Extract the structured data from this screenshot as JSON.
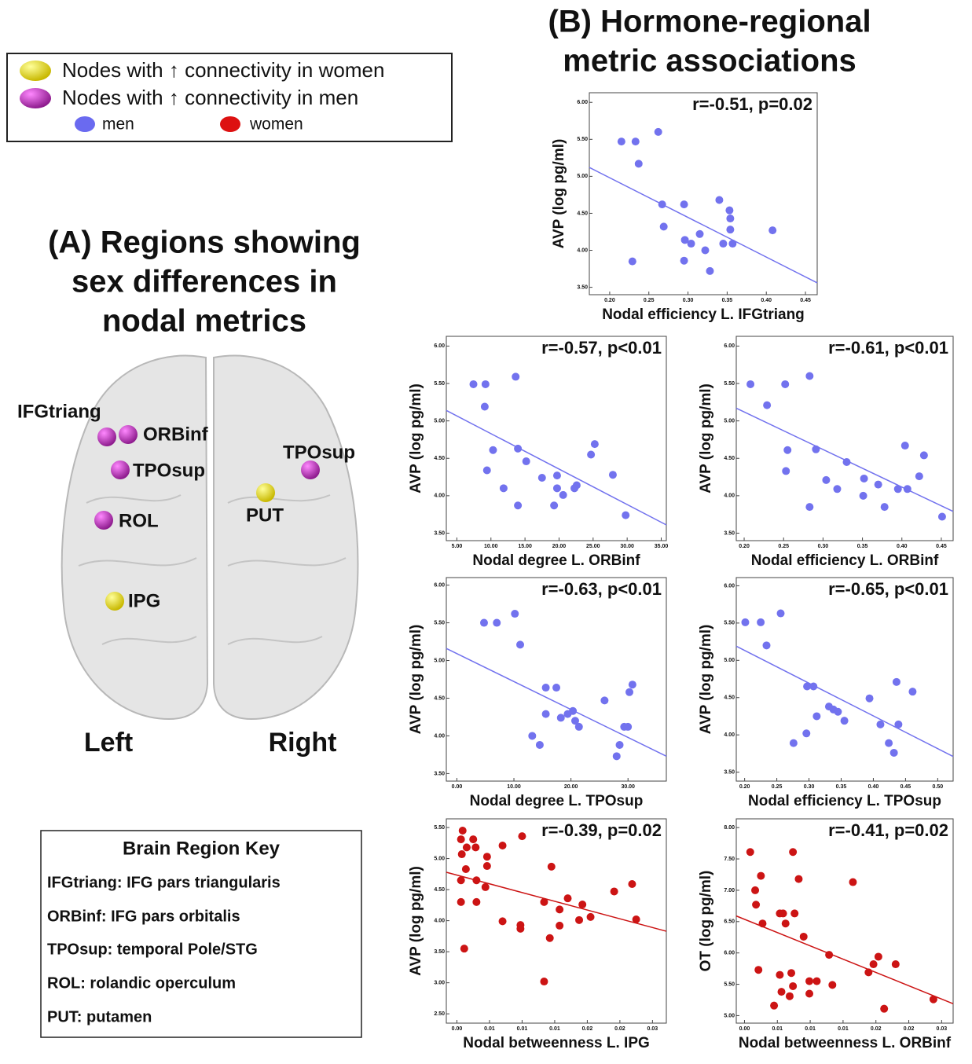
{
  "legend": {
    "items": [
      "Nodes with ↑ connectivity in women",
      "Nodes with ↑ connectivity in men",
      "men",
      "women"
    ]
  },
  "panel_a": {
    "title_lines": [
      "(A) Regions showing",
      "sex differences in",
      "nodal metrics"
    ],
    "nodes": [
      "IFGtriang",
      "ORBinf",
      "TPOsup",
      "ROL",
      "IPG",
      "TPOsup",
      "PUT"
    ],
    "sides": [
      "Left",
      "Right"
    ]
  },
  "key": {
    "title": "Brain Region Key",
    "items": [
      "IFGtriang: IFG pars triangularis",
      "ORBinf: IFG pars orbitalis",
      "TPOsup: temporal Pole/STG",
      "ROL: rolandic operculum",
      "PUT: putamen"
    ]
  },
  "panel_b": {
    "title_lines": [
      "(B) Hormone-regional",
      "metric associations"
    ]
  },
  "chart_data": [
    {
      "type": "scatter",
      "annotation": "r=-0.51, p=0.02",
      "xlabel": "Nodal efficiency L. IFGtriang",
      "ylabel": "AVP (log pg/ml)",
      "color": "#7272ee",
      "x": [
        0.215,
        0.233,
        0.237,
        0.262,
        0.267,
        0.269,
        0.295,
        0.296,
        0.304,
        0.315,
        0.322,
        0.328,
        0.34,
        0.345,
        0.353,
        0.354,
        0.354,
        0.357,
        0.408,
        0.229,
        0.295
      ],
      "values": [
        5.47,
        5.47,
        5.17,
        5.6,
        4.62,
        4.32,
        4.62,
        4.14,
        4.09,
        4.22,
        4.0,
        3.72,
        4.68,
        4.09,
        4.54,
        4.43,
        4.28,
        4.09,
        4.27,
        3.85,
        3.86
      ],
      "trend": {
        "x": [
          0.174,
          0.465
        ],
        "y": [
          5.12,
          3.56
        ]
      },
      "xlim": [
        0.174,
        0.465
      ],
      "ylim": [
        3.4,
        6.13
      ],
      "xticks": [
        {
          "value": 0.2,
          "label": "0.20"
        },
        {
          "value": 0.25,
          "label": "0.25"
        },
        {
          "value": 0.3,
          "label": "0.30"
        },
        {
          "value": 0.35,
          "label": "0.35"
        },
        {
          "value": 0.4,
          "label": "0.40"
        },
        {
          "value": 0.45,
          "label": "0.45"
        }
      ],
      "yticks": [
        {
          "value": 3.5,
          "label": "3.50"
        },
        {
          "value": 4,
          "label": "4.00"
        },
        {
          "value": 4.5,
          "label": "4.50"
        },
        {
          "value": 5,
          "label": "5.00"
        },
        {
          "value": 5.5,
          "label": "5.50"
        },
        {
          "value": 6,
          "label": "6.00"
        }
      ]
    },
    {
      "type": "scatter",
      "annotation": "r=-0.57, p<0.01",
      "xlabel": "Nodal degree L. ORBinf",
      "ylabel": "AVP (log pg/ml)",
      "color": "#7272ee",
      "x": [
        7.43,
        9.2,
        9.09,
        13.63,
        10.31,
        9.42,
        11.86,
        13.96,
        13.96,
        15.18,
        17.5,
        19.27,
        19.71,
        19.71,
        20.6,
        22.26,
        22.59,
        24.69,
        25.24,
        27.9,
        29.78
      ],
      "values": [
        5.49,
        5.49,
        5.19,
        5.59,
        4.61,
        4.34,
        4.1,
        4.63,
        3.87,
        4.46,
        4.24,
        3.87,
        4.27,
        4.1,
        4.01,
        4.1,
        4.14,
        4.55,
        4.69,
        4.28,
        3.74
      ],
      "trend": {
        "x": [
          3.45,
          35.75
        ],
        "y": [
          5.14,
          3.61
        ]
      },
      "xlim": [
        3.45,
        35.75
      ],
      "ylim": [
        3.4,
        6.13
      ],
      "xticks": [
        {
          "value": 5,
          "label": "5.00"
        },
        {
          "value": 10,
          "label": "10.00"
        },
        {
          "value": 15,
          "label": "15.00"
        },
        {
          "value": 20,
          "label": "20.00"
        },
        {
          "value": 25,
          "label": "25.00"
        },
        {
          "value": 30,
          "label": "30.00"
        },
        {
          "value": 35,
          "label": "35.00"
        }
      ],
      "yticks": [
        {
          "value": 3.5,
          "label": "3.50"
        },
        {
          "value": 4,
          "label": "4.00"
        },
        {
          "value": 4.5,
          "label": "4.50"
        },
        {
          "value": 5,
          "label": "5.00"
        },
        {
          "value": 5.5,
          "label": "5.50"
        },
        {
          "value": 6,
          "label": "6.00"
        }
      ]
    },
    {
      "type": "scatter",
      "annotation": "r=-0.61, p<0.01",
      "xlabel": "Nodal efficiency L. ORBinf",
      "ylabel": "AVP (log pg/ml)",
      "color": "#7272ee",
      "x": [
        0.208,
        0.229,
        0.252,
        0.255,
        0.253,
        0.283,
        0.291,
        0.304,
        0.318,
        0.33,
        0.351,
        0.352,
        0.37,
        0.378,
        0.395,
        0.404,
        0.407,
        0.422,
        0.428,
        0.451,
        0.283
      ],
      "values": [
        5.49,
        5.21,
        5.49,
        4.61,
        4.33,
        5.6,
        4.62,
        4.21,
        4.09,
        4.45,
        4.0,
        4.23,
        4.15,
        3.85,
        4.09,
        4.67,
        4.09,
        4.26,
        4.54,
        3.72,
        3.85
      ],
      "trend": {
        "x": [
          0.19,
          0.465
        ],
        "y": [
          5.17,
          3.79
        ]
      },
      "xlim": [
        0.19,
        0.465
      ],
      "ylim": [
        3.4,
        6.13
      ],
      "xticks": [
        {
          "value": 0.2,
          "label": "0.20"
        },
        {
          "value": 0.25,
          "label": "0.25"
        },
        {
          "value": 0.3,
          "label": "0.30"
        },
        {
          "value": 0.35,
          "label": "0.35"
        },
        {
          "value": 0.4,
          "label": "0.40"
        },
        {
          "value": 0.45,
          "label": "0.45"
        }
      ],
      "yticks": [
        {
          "value": 3.5,
          "label": "3.50"
        },
        {
          "value": 4,
          "label": "4.00"
        },
        {
          "value": 4.5,
          "label": "4.50"
        },
        {
          "value": 5,
          "label": "5.00"
        },
        {
          "value": 5.5,
          "label": "5.50"
        },
        {
          "value": 6,
          "label": "6.00"
        }
      ]
    },
    {
      "type": "scatter",
      "annotation": "r=-0.63, p<0.01",
      "xlabel": "Nodal degree L. TPOsup",
      "ylabel": "AVP (log pg/ml)",
      "color": "#7272ee",
      "x": [
        4.76,
        7.0,
        10.17,
        11.1,
        13.21,
        14.53,
        15.59,
        15.59,
        17.44,
        18.23,
        19.42,
        20.34,
        20.74,
        21.4,
        25.89,
        28.53,
        29.33,
        29.99,
        30.25,
        30.78,
        28.01
      ],
      "values": [
        5.5,
        5.5,
        5.62,
        5.21,
        4.0,
        3.88,
        4.64,
        4.29,
        4.64,
        4.24,
        4.29,
        4.33,
        4.2,
        4.12,
        4.47,
        3.88,
        4.12,
        4.12,
        4.58,
        4.68,
        3.73
      ],
      "trend": {
        "x": [
          -1.85,
          36.72
        ],
        "y": [
          5.16,
          3.73
        ]
      },
      "xlim": [
        -1.85,
        36.72
      ],
      "ylim": [
        3.4,
        6.1
      ],
      "xticks": [
        {
          "value": 0,
          "label": "0.00"
        },
        {
          "value": 10,
          "label": "10.00"
        },
        {
          "value": 20,
          "label": "20.00"
        },
        {
          "value": 30,
          "label": "30.00"
        }
      ],
      "yticks": [
        {
          "value": 3.5,
          "label": "3.50"
        },
        {
          "value": 4,
          "label": "4.00"
        },
        {
          "value": 4.5,
          "label": "4.50"
        },
        {
          "value": 5,
          "label": "5.00"
        },
        {
          "value": 5.5,
          "label": "5.50"
        },
        {
          "value": 6,
          "label": "6.00"
        }
      ]
    },
    {
      "type": "scatter",
      "annotation": "r=-0.65, p<0.01",
      "xlabel": "Nodal efficiency L. TPOsup",
      "ylabel": "AVP (log pg/ml)",
      "color": "#7272ee",
      "x": [
        0.201,
        0.225,
        0.234,
        0.256,
        0.276,
        0.296,
        0.297,
        0.307,
        0.312,
        0.331,
        0.338,
        0.345,
        0.355,
        0.394,
        0.411,
        0.424,
        0.432,
        0.436,
        0.439,
        0.461
      ],
      "values": [
        5.51,
        5.51,
        5.2,
        5.63,
        3.89,
        4.02,
        4.65,
        4.65,
        4.25,
        4.38,
        4.34,
        4.31,
        4.19,
        4.49,
        4.14,
        3.89,
        3.76,
        4.71,
        4.14,
        4.58
      ],
      "trend": {
        "x": [
          0.187,
          0.524
        ],
        "y": [
          5.19,
          3.71
        ]
      },
      "xlim": [
        0.187,
        0.524
      ],
      "ylim": [
        3.38,
        6.11
      ],
      "xticks": [
        {
          "value": 0.2,
          "label": "0.20"
        },
        {
          "value": 0.25,
          "label": "0.25"
        },
        {
          "value": 0.3,
          "label": "0.30"
        },
        {
          "value": 0.35,
          "label": "0.35"
        },
        {
          "value": 0.4,
          "label": "0.40"
        },
        {
          "value": 0.45,
          "label": "0.45"
        },
        {
          "value": 0.5,
          "label": "0.50"
        }
      ],
      "yticks": [
        {
          "value": 3.5,
          "label": "3.50"
        },
        {
          "value": 4,
          "label": "4.00"
        },
        {
          "value": 4.5,
          "label": "4.50"
        },
        {
          "value": 5,
          "label": "5.00"
        },
        {
          "value": 5.5,
          "label": "5.50"
        },
        {
          "value": 6,
          "label": "6.00"
        }
      ]
    },
    {
      "type": "scatter",
      "annotation": "r=-0.39, p=0.02",
      "xlabel": "Nodal betweenness L. IPG",
      "ylabel": "AVP (log pg/ml)",
      "color": "#cc1414",
      "x": [
        0.0027,
        0.0025,
        0.0026,
        0.0032,
        0.004,
        0.0043,
        0.0031,
        0.0025,
        0.0044,
        0.0044,
        0.0057,
        0.0057,
        0.0055,
        0.0076,
        0.0076,
        0.01,
        0.0098,
        0.0098,
        0.0136,
        0.0127,
        0.0146,
        0.0156,
        0.0146,
        0.0174,
        0.017,
        0.0184,
        0.0213,
        0.0235,
        0.024,
        0.0029,
        0.0134,
        0.0127,
        0.0025
      ],
      "values": [
        5.45,
        5.31,
        5.07,
        5.18,
        5.31,
        5.18,
        4.83,
        4.65,
        4.65,
        4.3,
        5.03,
        4.88,
        4.54,
        5.21,
        3.99,
        5.36,
        3.93,
        3.87,
        4.87,
        4.3,
        4.18,
        4.36,
        3.92,
        4.26,
        4.01,
        4.06,
        4.47,
        4.59,
        4.02,
        3.55,
        3.72,
        3.02,
        4.3
      ],
      "trend": {
        "x": [
          0.0007,
          0.0277
        ],
        "y": [
          4.78,
          3.83
        ]
      },
      "xlim": [
        0.0007,
        0.0277
      ],
      "ylim": [
        2.35,
        5.64
      ],
      "xticks": [
        {
          "value": 0.002,
          "label": "0.00"
        },
        {
          "value": 0.006,
          "label": "0.01"
        },
        {
          "value": 0.01,
          "label": "0.01"
        },
        {
          "value": 0.014,
          "label": "0.01"
        },
        {
          "value": 0.018,
          "label": "0.02"
        },
        {
          "value": 0.022,
          "label": "0.02"
        },
        {
          "value": 0.026,
          "label": "0.03"
        }
      ],
      "yticks": [
        {
          "value": 2.5,
          "label": "2.50"
        },
        {
          "value": 3,
          "label": "3.00"
        },
        {
          "value": 3.5,
          "label": "3.50"
        },
        {
          "value": 4,
          "label": "4.00"
        },
        {
          "value": 4.5,
          "label": "4.50"
        },
        {
          "value": 5,
          "label": "5.00"
        },
        {
          "value": 5.5,
          "label": "5.50"
        }
      ]
    },
    {
      "type": "scatter",
      "annotation": "r=-0.41, p=0.02",
      "xlabel": "Nodal betweenness L. ORBinf",
      "ylabel": "OT (log pg/ml)",
      "color": "#cc1414",
      "x": [
        0.0027,
        0.0033,
        0.0034,
        0.004,
        0.0042,
        0.0037,
        0.0056,
        0.0063,
        0.0063,
        0.0065,
        0.0067,
        0.007,
        0.0075,
        0.0077,
        0.0079,
        0.0081,
        0.0086,
        0.0092,
        0.0079,
        0.0099,
        0.0108,
        0.0099,
        0.0127,
        0.0123,
        0.0152,
        0.0171,
        0.0177,
        0.0183,
        0.019,
        0.0204,
        0.025
      ],
      "values": [
        7.61,
        7.0,
        6.77,
        7.23,
        6.47,
        5.73,
        5.16,
        6.63,
        5.65,
        5.38,
        6.63,
        6.47,
        5.31,
        5.68,
        7.61,
        6.63,
        7.18,
        6.26,
        5.47,
        5.55,
        5.55,
        5.35,
        5.49,
        5.97,
        7.13,
        5.69,
        5.82,
        5.94,
        5.11,
        5.82,
        5.26
      ],
      "trend": {
        "x": [
          0.001,
          0.0274
        ],
        "y": [
          6.59,
          5.19
        ]
      },
      "xlim": [
        0.001,
        0.0274
      ],
      "ylim": [
        4.88,
        8.14
      ],
      "xticks": [
        {
          "value": 0.002,
          "label": "0.00"
        },
        {
          "value": 0.006,
          "label": "0.01"
        },
        {
          "value": 0.01,
          "label": "0.01"
        },
        {
          "value": 0.014,
          "label": "0.01"
        },
        {
          "value": 0.018,
          "label": "0.02"
        },
        {
          "value": 0.022,
          "label": "0.02"
        },
        {
          "value": 0.026,
          "label": "0.03"
        }
      ],
      "yticks": [
        {
          "value": 5,
          "label": "5.00"
        },
        {
          "value": 5.5,
          "label": "5.50"
        },
        {
          "value": 6,
          "label": "6.00"
        },
        {
          "value": 6.5,
          "label": "6.50"
        },
        {
          "value": 7,
          "label": "7.00"
        },
        {
          "value": 7.5,
          "label": "7.50"
        },
        {
          "value": 8,
          "label": "8.00"
        }
      ]
    }
  ]
}
